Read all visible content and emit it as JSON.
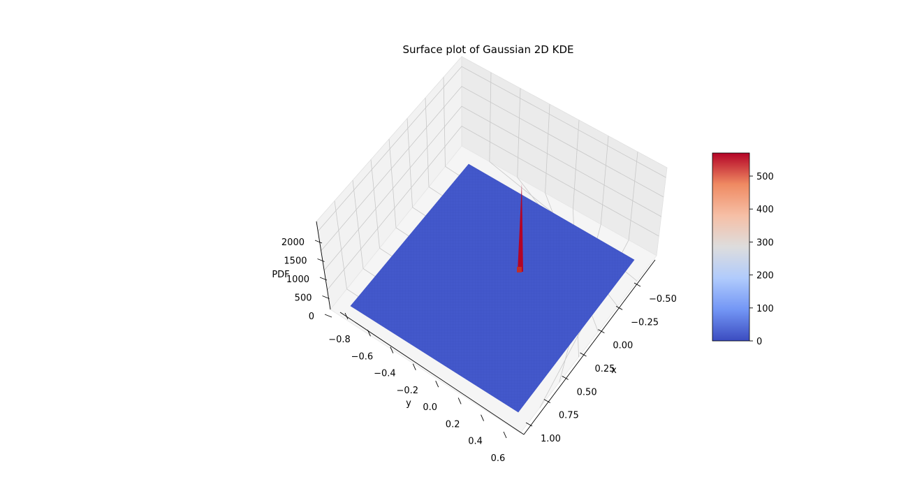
{
  "chart_data": {
    "type": "surface3d",
    "title": "Surface plot of Gaussian 2D KDE",
    "xlabel": "x",
    "ylabel": "y",
    "zlabel": "PDF",
    "x_ticks": [
      "−0.50",
      "−0.25",
      "0.00",
      "0.25",
      "0.50",
      "0.75",
      "1.00"
    ],
    "y_ticks": [
      "−0.8",
      "−0.6",
      "−0.4",
      "−0.2",
      "0.0",
      "0.2",
      "0.4",
      "0.6"
    ],
    "z_ticks": [
      "0",
      "500",
      "1000",
      "1500",
      "2000"
    ],
    "colorbar": {
      "ticks": [
        "0",
        "100",
        "200",
        "300",
        "400",
        "500"
      ],
      "range": [
        0,
        570
      ],
      "colormap": "coolwarm",
      "stops": [
        "#3b4cc0",
        "#7396f5",
        "#b0cbfc",
        "#dddddd",
        "#f6bfa6",
        "#ef8a62",
        "#b40426"
      ]
    },
    "surface": {
      "baseline_value": 0,
      "peak_value": 570,
      "base_color": "#4358cb",
      "peak_color": "#b40426"
    },
    "grid": true
  }
}
